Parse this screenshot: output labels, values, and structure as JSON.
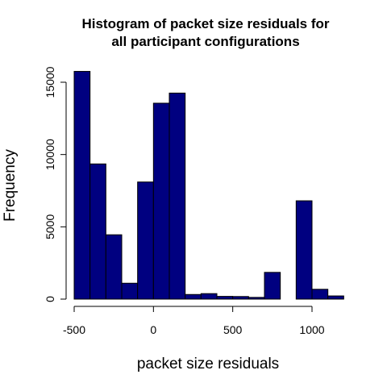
{
  "chart_data": {
    "type": "bar",
    "title": "Histogram of packet size residuals for\nall participant configurations",
    "title_lines": [
      "Histogram of packet size residuals for",
      "all participant configurations"
    ],
    "xlabel": "packet size residuals",
    "ylabel": "Frequency",
    "xlim": [
      -500,
      1200
    ],
    "ylim": [
      0,
      15800
    ],
    "xticks": [
      -500,
      0,
      500,
      1000
    ],
    "xtick_labels": [
      "-500",
      "0",
      "500",
      "1000"
    ],
    "yticks": [
      0,
      5000,
      10000,
      15000
    ],
    "ytick_labels": [
      "0",
      "5000",
      "10000",
      "15000"
    ],
    "bin_width": 100,
    "bins": [
      {
        "x0": -500,
        "x1": -400,
        "value": 15750
      },
      {
        "x0": -400,
        "x1": -300,
        "value": 9350
      },
      {
        "x0": -300,
        "x1": -200,
        "value": 4450
      },
      {
        "x0": -200,
        "x1": -100,
        "value": 1100
      },
      {
        "x0": -100,
        "x1": 0,
        "value": 8100
      },
      {
        "x0": 0,
        "x1": 100,
        "value": 13550
      },
      {
        "x0": 100,
        "x1": 200,
        "value": 14250
      },
      {
        "x0": 200,
        "x1": 300,
        "value": 320
      },
      {
        "x0": 300,
        "x1": 400,
        "value": 380
      },
      {
        "x0": 400,
        "x1": 500,
        "value": 190
      },
      {
        "x0": 500,
        "x1": 600,
        "value": 180
      },
      {
        "x0": 600,
        "x1": 700,
        "value": 120
      },
      {
        "x0": 700,
        "x1": 800,
        "value": 1850
      },
      {
        "x0": 800,
        "x1": 900,
        "value": 0
      },
      {
        "x0": 900,
        "x1": 1000,
        "value": 6800
      },
      {
        "x0": 1000,
        "x1": 1100,
        "value": 680
      },
      {
        "x0": 1100,
        "x1": 1200,
        "value": 220
      }
    ],
    "bar_fill": "#000080",
    "bar_stroke": "#000000",
    "grid": false,
    "legend": "none"
  }
}
